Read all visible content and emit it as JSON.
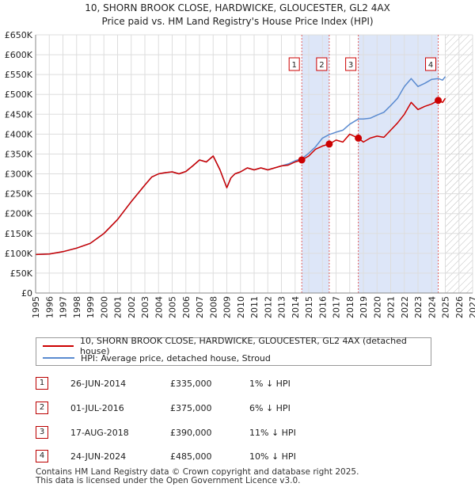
{
  "title_line1": "10, SHORN BROOK CLOSE, HARDWICKE, GLOUCESTER, GL2 4AX",
  "title_line2": "Price paid vs. HM Land Registry's House Price Index (HPI)",
  "colors": {
    "property": "#cc0000",
    "hpi": "#5b8bd0",
    "shade": "#dde6f8"
  },
  "chart_data": {
    "type": "line",
    "title": "Price paid vs. HM Land Registry's House Price Index (HPI)",
    "xlim": [
      1995,
      2027
    ],
    "ylim": [
      0,
      650000
    ],
    "x_ticks": [
      "1995",
      "1996",
      "1997",
      "1998",
      "1999",
      "2000",
      "2001",
      "2002",
      "2003",
      "2004",
      "2005",
      "2006",
      "2007",
      "2008",
      "2009",
      "2010",
      "2011",
      "2012",
      "2013",
      "2014",
      "2015",
      "2016",
      "2017",
      "2018",
      "2019",
      "2020",
      "2021",
      "2022",
      "2023",
      "2024",
      "2025",
      "2026",
      "2027"
    ],
    "y_ticks": [
      {
        "value": 0,
        "label": "£0"
      },
      {
        "value": 50000,
        "label": "£50K"
      },
      {
        "value": 100000,
        "label": "£100K"
      },
      {
        "value": 150000,
        "label": "£150K"
      },
      {
        "value": 200000,
        "label": "£200K"
      },
      {
        "value": 250000,
        "label": "£250K"
      },
      {
        "value": 300000,
        "label": "£300K"
      },
      {
        "value": 350000,
        "label": "£350K"
      },
      {
        "value": 400000,
        "label": "£400K"
      },
      {
        "value": 450000,
        "label": "£450K"
      },
      {
        "value": 500000,
        "label": "£500K"
      },
      {
        "value": 550000,
        "label": "£550K"
      },
      {
        "value": 600000,
        "label": "£600K"
      },
      {
        "value": 650000,
        "label": "£650K"
      }
    ],
    "forecast_from": 2025.0,
    "series": [
      {
        "name": "10, SHORN BROOK CLOSE, HARDWICKE, GLOUCESTER, GL2 4AX (detached house)",
        "x": [
          1995.0,
          1996.0,
          1997.0,
          1998.0,
          1999.0,
          2000.0,
          2001.0,
          2002.0,
          2003.0,
          2003.5,
          2004.0,
          2004.5,
          2005.0,
          2005.5,
          2006.0,
          2006.5,
          2007.0,
          2007.5,
          2008.0,
          2008.5,
          2009.0,
          2009.3,
          2009.6,
          2010.0,
          2010.5,
          2011.0,
          2011.5,
          2012.0,
          2012.5,
          2013.0,
          2013.5,
          2014.0,
          2014.49,
          2015.0,
          2015.5,
          2016.0,
          2016.5,
          2017.0,
          2017.5,
          2018.0,
          2018.63,
          2019.0,
          2019.5,
          2020.0,
          2020.5,
          2021.0,
          2021.5,
          2022.0,
          2022.5,
          2023.0,
          2023.5,
          2024.0,
          2024.48,
          2024.8,
          2025.0
        ],
        "values": [
          97000,
          98000,
          104000,
          113000,
          125000,
          150000,
          185000,
          230000,
          272000,
          292000,
          300000,
          303000,
          305000,
          300000,
          306000,
          320000,
          335000,
          330000,
          345000,
          310000,
          265000,
          290000,
          300000,
          305000,
          315000,
          310000,
          315000,
          310000,
          315000,
          320000,
          322000,
          330000,
          335000,
          345000,
          362000,
          370000,
          375000,
          385000,
          380000,
          400000,
          390000,
          380000,
          390000,
          395000,
          392000,
          410000,
          428000,
          450000,
          480000,
          462000,
          470000,
          476000,
          485000,
          480000,
          490000
        ]
      },
      {
        "name": "HPI: Average price, detached house, Stroud",
        "x": [
          1995.0,
          1996.0,
          1997.0,
          1998.0,
          1999.0,
          2000.0,
          2001.0,
          2002.0,
          2003.0,
          2003.5,
          2004.0,
          2004.5,
          2005.0,
          2005.5,
          2006.0,
          2006.5,
          2007.0,
          2007.5,
          2008.0,
          2008.5,
          2009.0,
          2009.3,
          2009.6,
          2010.0,
          2010.5,
          2011.0,
          2011.5,
          2012.0,
          2012.5,
          2013.0,
          2013.5,
          2014.0,
          2014.49,
          2015.0,
          2015.5,
          2016.0,
          2016.5,
          2017.0,
          2017.5,
          2018.0,
          2018.63,
          2019.0,
          2019.5,
          2020.0,
          2020.5,
          2021.0,
          2021.5,
          2022.0,
          2022.5,
          2023.0,
          2023.5,
          2024.0,
          2024.48,
          2024.8,
          2025.0
        ],
        "values": [
          97000,
          98000,
          104000,
          113000,
          125000,
          150000,
          185000,
          230000,
          272000,
          292000,
          300000,
          303000,
          305000,
          300000,
          306000,
          320000,
          335000,
          330000,
          345000,
          310000,
          265000,
          290000,
          300000,
          305000,
          315000,
          310000,
          315000,
          310000,
          315000,
          320000,
          325000,
          333000,
          338000,
          352000,
          368000,
          390000,
          399000,
          405000,
          410000,
          425000,
          438000,
          438000,
          440000,
          448000,
          455000,
          472000,
          490000,
          520000,
          540000,
          520000,
          528000,
          538000,
          540000,
          536000,
          545000
        ]
      }
    ],
    "transactions": [
      {
        "n": "1",
        "x": 2014.49,
        "value": 335000
      },
      {
        "n": "2",
        "x": 2016.5,
        "value": 375000
      },
      {
        "n": "3",
        "x": 2018.63,
        "value": 390000
      },
      {
        "n": "4",
        "x": 2024.48,
        "value": 485000
      }
    ]
  },
  "legend": {
    "property": "10, SHORN BROOK CLOSE, HARDWICKE, GLOUCESTER, GL2 4AX (detached house)",
    "hpi": "HPI: Average price, detached house, Stroud"
  },
  "table": [
    {
      "n": "1",
      "date": "26-JUN-2014",
      "price": "£335,000",
      "hpi": "1% ↓ HPI"
    },
    {
      "n": "2",
      "date": "01-JUL-2016",
      "price": "£375,000",
      "hpi": "6% ↓ HPI"
    },
    {
      "n": "3",
      "date": "17-AUG-2018",
      "price": "£390,000",
      "hpi": "11% ↓ HPI"
    },
    {
      "n": "4",
      "date": "24-JUN-2024",
      "price": "£485,000",
      "hpi": "10% ↓ HPI"
    }
  ],
  "footer_line1": "Contains HM Land Registry data © Crown copyright and database right 2025.",
  "footer_line2": "This data is licensed under the Open Government Licence v3.0."
}
